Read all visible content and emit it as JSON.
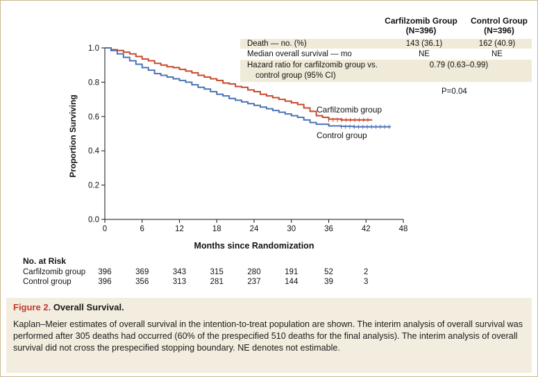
{
  "chart_data": {
    "type": "line",
    "title": "",
    "xlabel": "Months since Randomization",
    "ylabel": "Proportion Surviving",
    "xlim": [
      0,
      48
    ],
    "ylim": [
      0,
      1.0
    ],
    "x_ticks": [
      0,
      6,
      12,
      18,
      24,
      30,
      36,
      42,
      48
    ],
    "y_ticks": [
      0.0,
      0.2,
      0.4,
      0.6,
      0.8,
      1.0
    ],
    "y_tick_labels": [
      "0.0",
      "0.2",
      "0.4",
      "0.6",
      "0.8",
      "1.0"
    ],
    "grid": false,
    "series": [
      {
        "name": "Carfilzomib group",
        "color": "#c8482c",
        "x": [
          0,
          1,
          2,
          3,
          4,
          5,
          6,
          7,
          8,
          9,
          10,
          11,
          12,
          13,
          14,
          15,
          16,
          17,
          18,
          19,
          20,
          21,
          22,
          23,
          24,
          25,
          26,
          27,
          28,
          29,
          30,
          31,
          32,
          33,
          34,
          35,
          36,
          38,
          40,
          42,
          43
        ],
        "y": [
          1.0,
          0.99,
          0.985,
          0.975,
          0.965,
          0.95,
          0.935,
          0.925,
          0.91,
          0.9,
          0.89,
          0.885,
          0.875,
          0.865,
          0.855,
          0.84,
          0.83,
          0.82,
          0.81,
          0.795,
          0.79,
          0.775,
          0.77,
          0.755,
          0.745,
          0.73,
          0.72,
          0.71,
          0.7,
          0.69,
          0.68,
          0.67,
          0.65,
          0.63,
          0.605,
          0.595,
          0.585,
          0.58,
          0.58,
          0.58,
          0.58
        ]
      },
      {
        "name": "Control group",
        "color": "#4a73b4",
        "x": [
          0,
          1,
          2,
          3,
          4,
          5,
          6,
          7,
          8,
          9,
          10,
          11,
          12,
          13,
          14,
          15,
          16,
          17,
          18,
          19,
          20,
          21,
          22,
          23,
          24,
          25,
          26,
          27,
          28,
          29,
          30,
          31,
          32,
          33,
          34,
          36,
          38,
          40,
          42,
          44,
          46
        ],
        "y": [
          1.0,
          0.985,
          0.965,
          0.945,
          0.925,
          0.905,
          0.885,
          0.87,
          0.85,
          0.84,
          0.83,
          0.82,
          0.81,
          0.8,
          0.785,
          0.77,
          0.76,
          0.745,
          0.73,
          0.72,
          0.705,
          0.695,
          0.685,
          0.675,
          0.665,
          0.655,
          0.645,
          0.635,
          0.625,
          0.615,
          0.605,
          0.595,
          0.58,
          0.565,
          0.555,
          0.545,
          0.543,
          0.54,
          0.54,
          0.54,
          0.54
        ]
      }
    ],
    "line_labels": [
      "Carfilzomib group",
      "Control group"
    ]
  },
  "stats_table": {
    "col_headers": [
      {
        "name": "Carfilzomib Group",
        "n": "(N=396)"
      },
      {
        "name": "Control Group",
        "n": "(N=396)"
      }
    ],
    "rows": [
      {
        "label": "Death — no. (%)",
        "carfilzomib": "143 (36.1)",
        "control": "162 (40.9)"
      },
      {
        "label": "Median overall survival — mo",
        "carfilzomib": "NE",
        "control": "NE"
      },
      {
        "label": "Hazard ratio for carfilzomib group vs.",
        "label2": "control group (95% CI)",
        "combined": "0.79 (0.63–0.99)"
      }
    ],
    "p_value": "P=0.04"
  },
  "at_risk": {
    "title": "No. at Risk",
    "groups": [
      {
        "label": "Carfilzomib group",
        "values": [
          "396",
          "369",
          "343",
          "315",
          "280",
          "191",
          "52",
          "2"
        ]
      },
      {
        "label": "Control group",
        "values": [
          "396",
          "356",
          "313",
          "281",
          "237",
          "144",
          "39",
          "3"
        ]
      }
    ]
  },
  "caption": {
    "figure_number": "Figure 2.",
    "title": "Overall Survival.",
    "body": "Kaplan–Meier estimates of overall survival in the intention-to-treat population are shown. The interim analysis of overall survival was performed after 305 deaths had occurred (60% of the prespecified 510 deaths for the final analysis). The interim analysis of overall survival did not cross the prespecified stopping boundary. NE denotes not estimable."
  }
}
